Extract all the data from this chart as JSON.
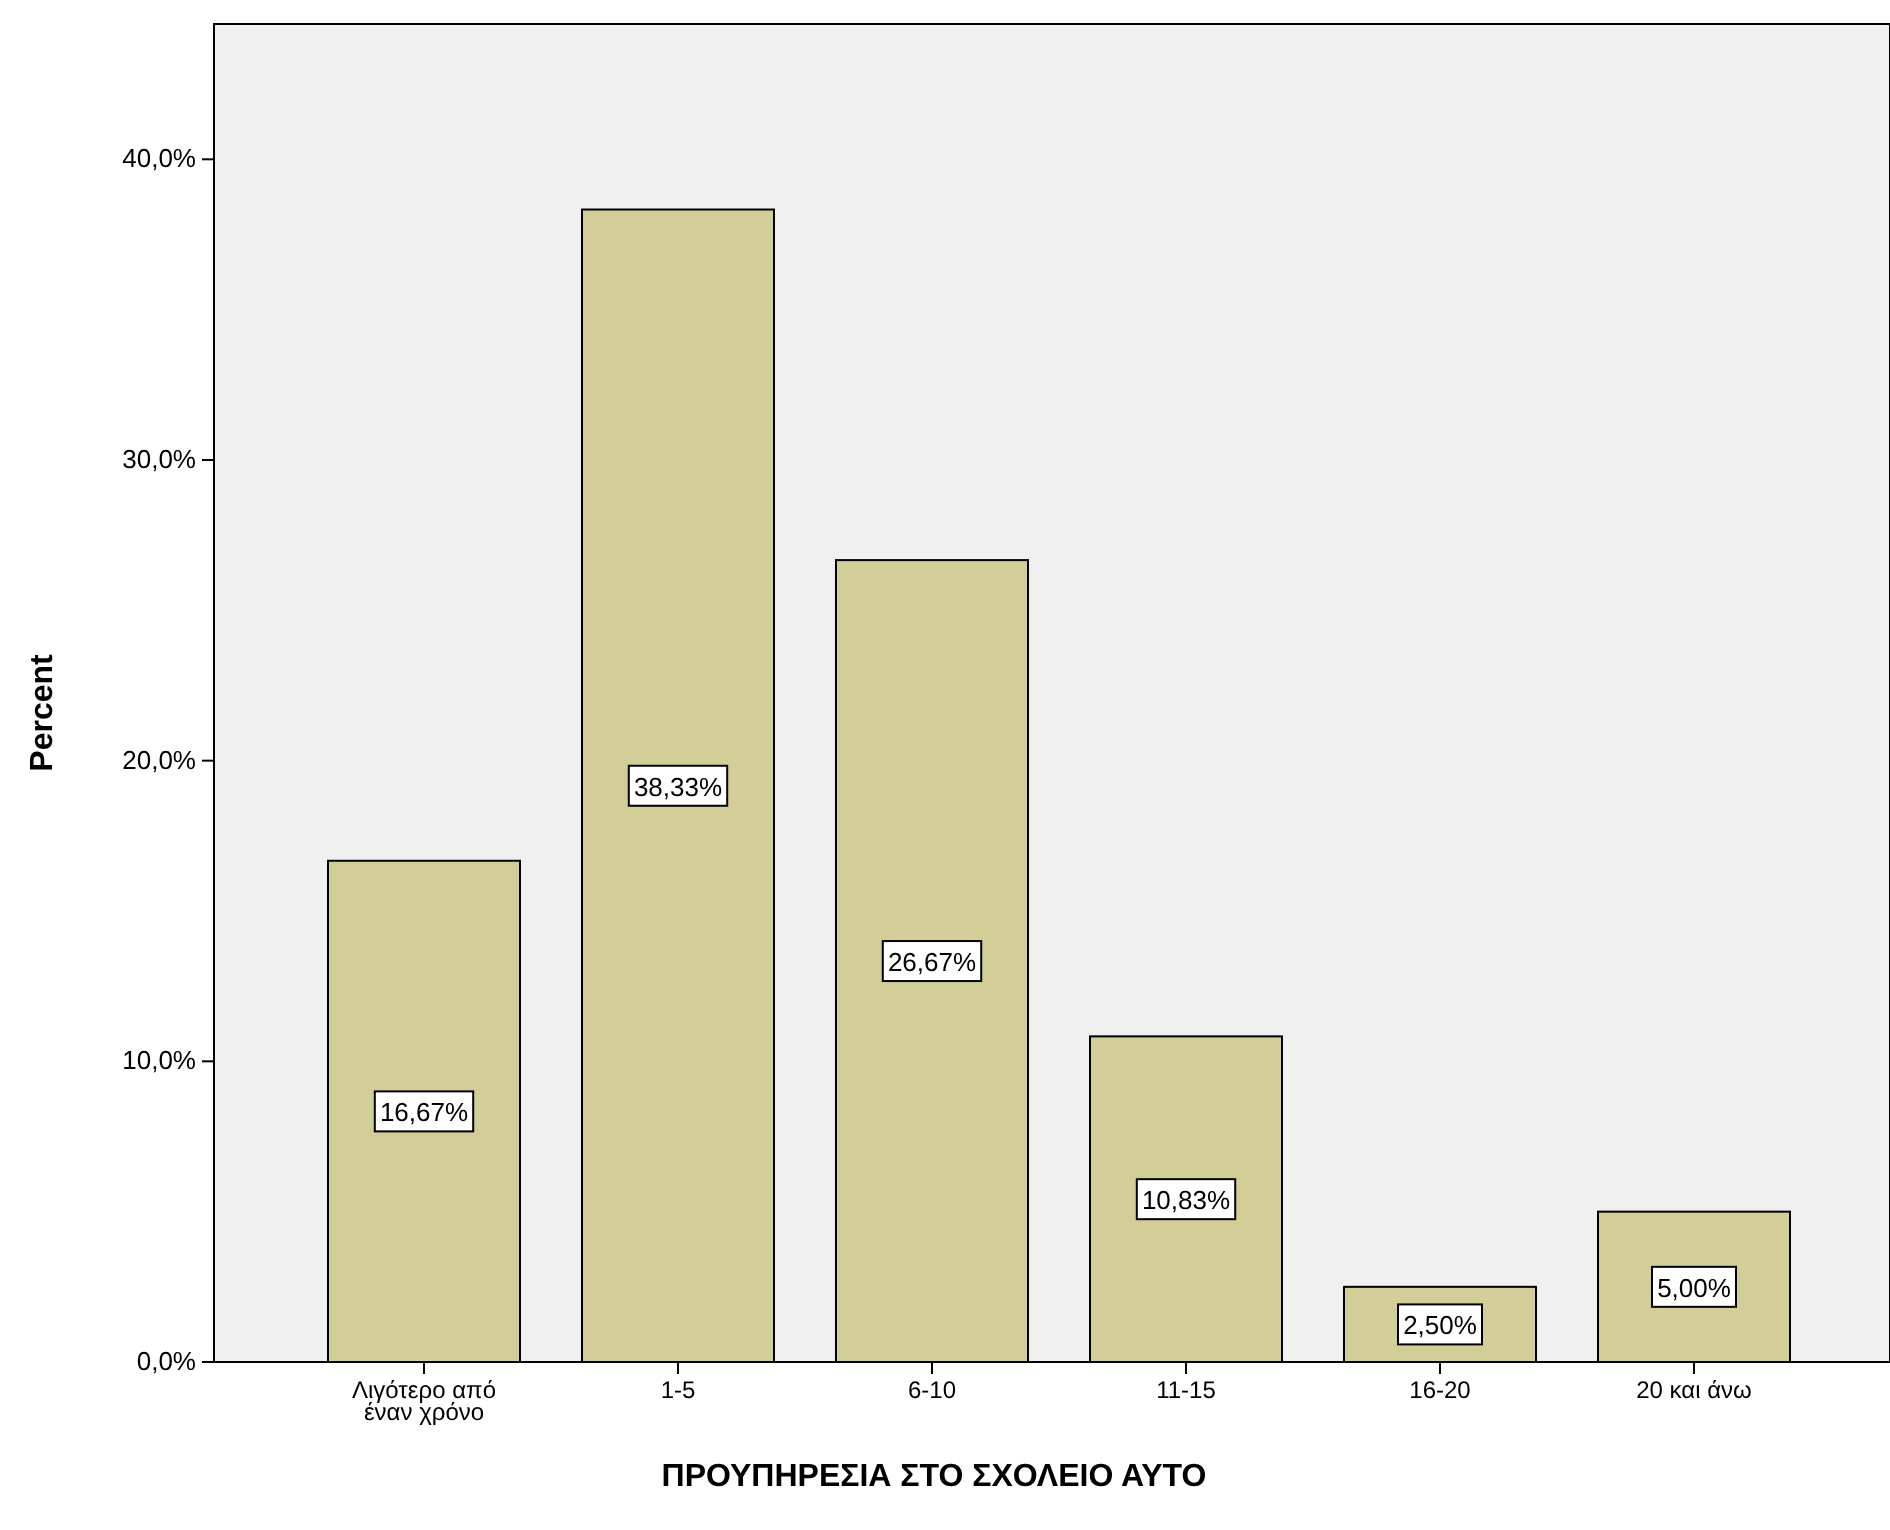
{
  "chart_data": {
    "type": "bar",
    "xlabel": "ΠΡΟΥΠΗΡΕΣΙΑ ΣΤΟ ΣΧΟΛΕΙΟ ΑΥΤΟ",
    "ylabel": "Percent",
    "categories": [
      "Λιγότερο από έναν χρόνο",
      "1-5",
      "6-10",
      "11-15",
      "16-20",
      "20 και άνω"
    ],
    "values": [
      16.67,
      38.33,
      26.67,
      10.83,
      2.5,
      5.0
    ],
    "value_labels": [
      "16,67%",
      "38,33%",
      "26,67%",
      "10,83%",
      "2,50%",
      "5,00%"
    ],
    "color": "#d3ce97",
    "ylim": [
      0,
      44.5
    ],
    "yticks": [
      {
        "value": 0,
        "label": "0,0%"
      },
      {
        "value": 10,
        "label": "10,0%"
      },
      {
        "value": 20,
        "label": "20,0%"
      },
      {
        "value": 30,
        "label": "30,0%"
      },
      {
        "value": 40,
        "label": "40,0%"
      }
    ],
    "grid": false
  }
}
